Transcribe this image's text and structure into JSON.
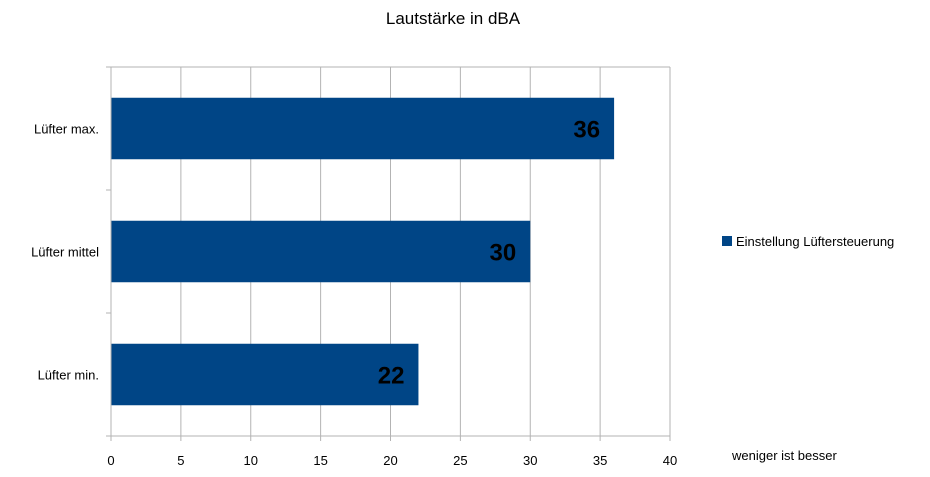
{
  "chart_data": {
    "type": "bar",
    "orientation": "horizontal",
    "title": "Lautstärke in dBA",
    "categories": [
      "Lüfter max.",
      "Lüfter mittel",
      "Lüfter min."
    ],
    "series": [
      {
        "name": "Einstellung Lüftersteuerung",
        "values": [
          36,
          30,
          22
        ],
        "color": "#004586"
      }
    ],
    "xlim": [
      0,
      40
    ],
    "xticks": [
      0,
      5,
      10,
      15,
      20,
      25,
      30,
      35,
      40
    ],
    "grid": true,
    "legend_position": "right",
    "note": "weniger ist besser"
  }
}
